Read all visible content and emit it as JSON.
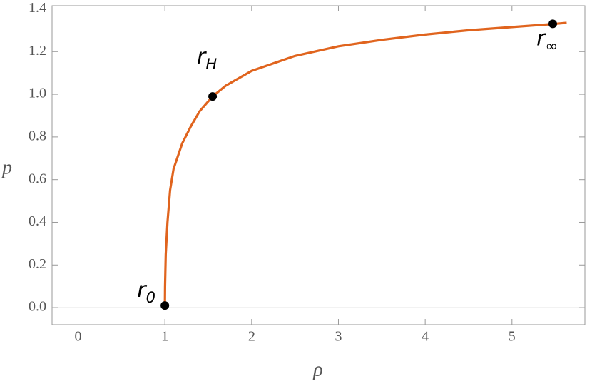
{
  "chart_data": {
    "type": "line",
    "xlabel": "ρ",
    "ylabel": "p",
    "xlim": [
      -0.3,
      5.84
    ],
    "ylim": [
      -0.08,
      1.415
    ],
    "xticks": [
      0,
      1,
      2,
      3,
      4,
      5
    ],
    "yticks": [
      {
        "value": 0,
        "label": "0.0"
      },
      0.2,
      0.4,
      0.6,
      0.8,
      {
        "value": 1,
        "label": "1.0"
      },
      1.2,
      1.4
    ],
    "series": [
      {
        "color": "#e0641e",
        "x": [
          1.0,
          1.002,
          1.01,
          1.03,
          1.06,
          1.1,
          1.2,
          1.3,
          1.4,
          1.55,
          1.7,
          2.0,
          2.5,
          3.0,
          3.5,
          4.0,
          4.5,
          5.0,
          5.5,
          5.63
        ],
        "values": [
          0,
          0.1,
          0.25,
          0.4,
          0.55,
          0.65,
          0.77,
          0.85,
          0.92,
          0.99,
          1.04,
          1.11,
          1.18,
          1.225,
          1.255,
          1.28,
          1.3,
          1.315,
          1.33,
          1.335
        ]
      }
    ],
    "points": {
      "color": "#000000",
      "x": [
        1.0,
        1.55,
        5.47
      ],
      "values": [
        0.01,
        0.99,
        1.33
      ],
      "labels": [
        {
          "text": "r",
          "subscript": "0"
        },
        {
          "text": "r",
          "subscript": "H"
        },
        {
          "text": "r",
          "subscript": "∞"
        }
      ]
    }
  }
}
